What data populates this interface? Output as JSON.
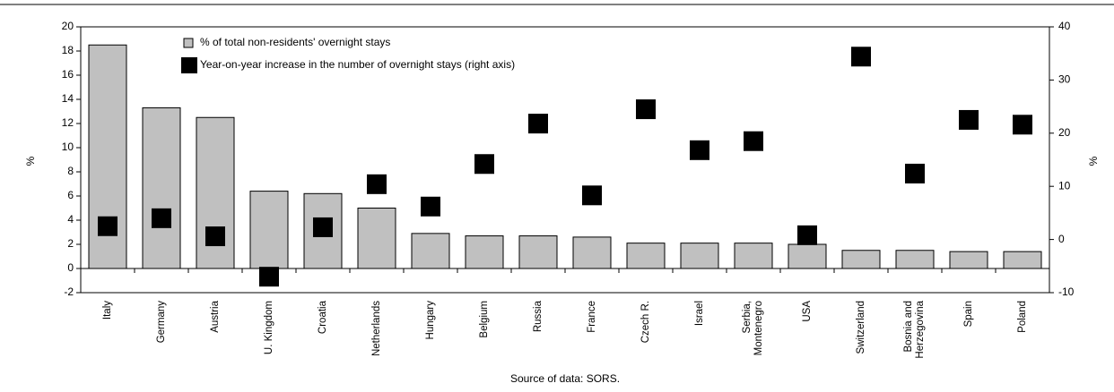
{
  "chart_data": {
    "type": "bar",
    "categories": [
      "Italy",
      "Germany",
      "Austria",
      "U. Kingdom",
      "Croatia",
      "Netherlands",
      "Hungary",
      "Belgium",
      "Russia",
      "France",
      "Czech R.",
      "Israel",
      "Serbia, Montenegro",
      "USA",
      "Switzerland",
      "Bosnia and Herzegovina",
      "Spain",
      "Poland"
    ],
    "series": [
      {
        "name": "% of total non-residents' overnight stays",
        "color": "#c0c0c0",
        "type": "bar",
        "values": [
          18.5,
          13.3,
          12.5,
          6.4,
          6.2,
          5.0,
          2.9,
          2.7,
          2.7,
          2.6,
          2.1,
          2.1,
          2.1,
          2.0,
          1.5,
          1.5,
          1.4,
          1.4
        ]
      },
      {
        "name": "Year-on-year increase in the number of overnight stays (right axis)",
        "color": "#000000",
        "type": "scatter",
        "axis": "y2",
        "values": [
          2.5,
          4.0,
          0.6,
          -7.0,
          2.3,
          10.4,
          6.2,
          14.2,
          21.8,
          8.3,
          24.5,
          16.8,
          18.5,
          0.8,
          34.4,
          12.4,
          22.5,
          21.6
        ]
      }
    ],
    "ylabel": "%",
    "y2label": "%",
    "ylim": [
      -2,
      20
    ],
    "yticks": [
      -2,
      0,
      2,
      4,
      6,
      8,
      10,
      12,
      14,
      16,
      18,
      20
    ],
    "y2lim": [
      -10,
      40
    ],
    "y2ticks": [
      -10,
      0,
      10,
      20,
      30,
      40
    ],
    "grid": false,
    "legend": "top-left",
    "source": "Source of data: SORS."
  }
}
